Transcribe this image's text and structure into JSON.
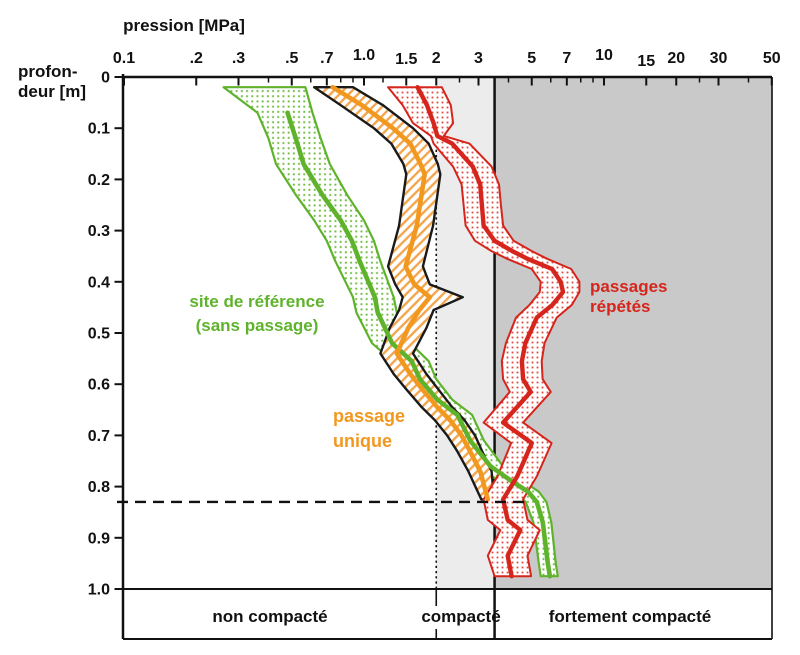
{
  "figure": {
    "title": "pression [MPa]",
    "depth_label_line1": "profon-",
    "depth_label_line2": "deur [m]"
  },
  "zones": {
    "labels": [
      "non compacté",
      "compacté",
      "fortement compacté"
    ],
    "compact_threshold_mpa": 2,
    "strong_threshold_mpa": 3.5
  },
  "legend": {
    "reference_line1": "site de référence",
    "reference_line2": "(sans passage)",
    "single_line1": "passage",
    "single_line2": "unique",
    "repeated_line1": "passages",
    "repeated_line2": "répétés"
  },
  "colors": {
    "green": "#5fb32c",
    "green_dot": "#6dbb3e",
    "orange": "#f2981f",
    "orange_hatch": "#f3a64e",
    "red": "#d5251c",
    "red_dot": "#de4a3e",
    "zone_light": "#ececec",
    "zone_dark": "#c9c9c9",
    "axis": "#111111"
  },
  "chart_data": {
    "type": "line",
    "title": "pression [MPa]",
    "xlabel": "pression [MPa]",
    "ylabel": "profondeur [m]",
    "x_scale": "log",
    "xlim": [
      0.1,
      50
    ],
    "ylim": [
      0,
      1.0
    ],
    "grid": false,
    "x_ticks": [
      [
        0.1,
        "0.1",
        0
      ],
      [
        0.2,
        ".2",
        0
      ],
      [
        0.3,
        ".3",
        0
      ],
      [
        0.5,
        ".5",
        0
      ],
      [
        0.7,
        ".7",
        0
      ],
      [
        1.0,
        "1.0",
        -3
      ],
      [
        1.5,
        "1.5",
        1
      ],
      [
        2,
        "2",
        0
      ],
      [
        3,
        "3",
        0
      ],
      [
        5,
        "5",
        0
      ],
      [
        7,
        "7",
        0
      ],
      [
        10,
        "10",
        -3
      ],
      [
        15,
        "15",
        3
      ],
      [
        20,
        "20",
        0
      ],
      [
        30,
        "30",
        0
      ],
      [
        50,
        "50",
        0
      ]
    ],
    "x_minor_ticks": [
      0.4,
      0.6,
      0.8,
      0.9,
      1.2,
      2.5,
      4,
      6,
      8,
      9,
      25,
      40
    ],
    "y_ticks": [
      [
        0,
        "0"
      ],
      [
        0.1,
        "0.1"
      ],
      [
        0.2,
        "0.2"
      ],
      [
        0.3,
        "0.3"
      ],
      [
        0.4,
        "0.4"
      ],
      [
        0.5,
        "0.5"
      ],
      [
        0.6,
        "0.6"
      ],
      [
        0.7,
        "0.7"
      ],
      [
        0.8,
        "0.8"
      ],
      [
        0.9,
        "0.9"
      ],
      [
        1.0,
        "1.0"
      ]
    ],
    "threshold_lines_mpa": [
      2,
      3.5
    ],
    "dashed_depth_m": 0.83,
    "series": [
      {
        "name": "site de référence (sans passage)",
        "style": "green",
        "center_from": 1,
        "points": [
          [
            0.02,
            0.26,
            0.45,
            0.57
          ],
          [
            0.07,
            0.36,
            0.48,
            0.61
          ],
          [
            0.12,
            0.4,
            0.52,
            0.66
          ],
          [
            0.17,
            0.43,
            0.56,
            0.72
          ],
          [
            0.23,
            0.52,
            0.67,
            0.85
          ],
          [
            0.28,
            0.62,
            0.8,
            1.0
          ],
          [
            0.32,
            0.7,
            0.89,
            1.1
          ],
          [
            0.36,
            0.76,
            0.96,
            1.17
          ],
          [
            0.43,
            0.9,
            1.11,
            1.33
          ],
          [
            0.46,
            0.93,
            1.14,
            1.37
          ],
          [
            0.52,
            1.08,
            1.31,
            1.56
          ],
          [
            0.555,
            1.32,
            1.58,
            1.86
          ],
          [
            0.59,
            1.44,
            1.71,
            2.0
          ],
          [
            0.63,
            1.73,
            2.02,
            2.33
          ],
          [
            0.66,
            2.08,
            2.45,
            2.82
          ],
          [
            0.71,
            2.4,
            2.77,
            3.16
          ],
          [
            0.76,
            2.97,
            3.36,
            3.79
          ],
          [
            0.79,
            3.68,
            4.14,
            4.62
          ],
          [
            0.81,
            4.3,
            4.83,
            5.35
          ],
          [
            0.83,
            4.72,
            5.25,
            5.76
          ],
          [
            0.87,
            5.08,
            5.56,
            6.03
          ],
          [
            0.95,
            5.35,
            5.83,
            6.3
          ],
          [
            0.975,
            5.45,
            5.95,
            6.42
          ]
        ]
      },
      {
        "name": "passage unique",
        "style": "orange",
        "center_from": 0,
        "points": [
          [
            0.02,
            0.62,
            0.74,
            0.9
          ],
          [
            0.055,
            0.8,
            0.98,
            1.2
          ],
          [
            0.1,
            1.1,
            1.32,
            1.6
          ],
          [
            0.13,
            1.3,
            1.56,
            1.86
          ],
          [
            0.17,
            1.46,
            1.72,
            2.03
          ],
          [
            0.19,
            1.5,
            1.79,
            2.08
          ],
          [
            0.29,
            1.4,
            1.66,
            1.94
          ],
          [
            0.37,
            1.26,
            1.49,
            1.76
          ],
          [
            0.405,
            1.35,
            1.62,
            1.88
          ],
          [
            0.43,
            1.45,
            1.88,
            2.58
          ],
          [
            0.455,
            1.4,
            1.7,
            1.95
          ],
          [
            0.49,
            1.28,
            1.53,
            1.82
          ],
          [
            0.54,
            1.17,
            1.37,
            1.6
          ],
          [
            0.58,
            1.33,
            1.56,
            1.82
          ],
          [
            0.61,
            1.5,
            1.75,
            2.04
          ],
          [
            0.645,
            1.74,
            2.02,
            2.33
          ],
          [
            0.67,
            1.97,
            2.28,
            2.62
          ],
          [
            0.7,
            2.22,
            2.55,
            2.9
          ],
          [
            0.73,
            2.44,
            2.76,
            3.1
          ],
          [
            0.77,
            2.72,
            3.05,
            3.4
          ],
          [
            0.825,
            3.08,
            3.28,
            3.48
          ]
        ]
      },
      {
        "name": "passages répétés",
        "style": "red",
        "center_from": 0,
        "points": [
          [
            0.02,
            1.26,
            1.67,
            2.11
          ],
          [
            0.055,
            1.45,
            1.83,
            2.3
          ],
          [
            0.09,
            1.6,
            1.95,
            2.35
          ],
          [
            0.115,
            1.9,
            2.02,
            2.15
          ],
          [
            0.13,
            1.95,
            2.33,
            2.75
          ],
          [
            0.175,
            2.35,
            2.84,
            3.4
          ],
          [
            0.21,
            2.55,
            3.05,
            3.65
          ],
          [
            0.25,
            2.6,
            3.1,
            3.72
          ],
          [
            0.29,
            2.65,
            3.15,
            3.8
          ],
          [
            0.32,
            2.9,
            3.5,
            4.2
          ],
          [
            0.34,
            3.4,
            4.15,
            5.0
          ],
          [
            0.355,
            3.95,
            4.8,
            5.8
          ],
          [
            0.375,
            5.0,
            6.08,
            7.3
          ],
          [
            0.4,
            5.45,
            6.6,
            7.9
          ],
          [
            0.42,
            5.4,
            6.75,
            7.9
          ],
          [
            0.445,
            4.9,
            6.1,
            7.35
          ],
          [
            0.47,
            4.3,
            5.25,
            6.35
          ],
          [
            0.52,
            3.9,
            4.7,
            5.65
          ],
          [
            0.555,
            3.75,
            4.55,
            5.5
          ],
          [
            0.59,
            3.8,
            4.6,
            5.55
          ],
          [
            0.615,
            4.05,
            4.95,
            6.0
          ],
          [
            0.675,
            3.15,
            3.8,
            4.6
          ],
          [
            0.715,
            4.1,
            5.0,
            6.05
          ],
          [
            0.78,
            3.6,
            4.35,
            5.25
          ],
          [
            0.825,
            3.15,
            3.8,
            4.6
          ],
          [
            0.865,
            3.28,
            3.97,
            4.8
          ],
          [
            0.885,
            3.7,
            4.48,
            5.4
          ],
          [
            0.935,
            3.28,
            3.97,
            4.8
          ],
          [
            0.975,
            3.5,
            4.12,
            4.97
          ]
        ]
      }
    ]
  }
}
